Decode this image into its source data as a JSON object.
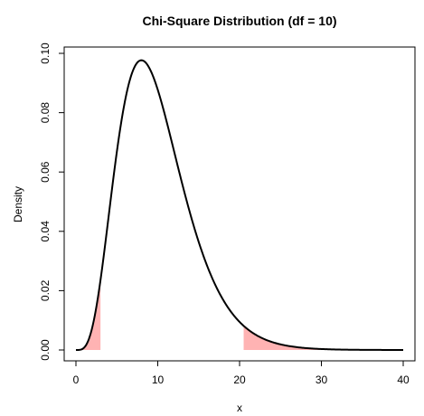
{
  "chart_data": {
    "type": "line",
    "title": "Chi-Square Distribution (df = 10)",
    "xlabel": "x",
    "ylabel": "Density",
    "df": 10,
    "xlim": [
      0,
      40
    ],
    "ylim": [
      0,
      0.1
    ],
    "x_ticks": [
      "0",
      "10",
      "20",
      "30",
      "40"
    ],
    "y_ticks": [
      "0.00",
      "0.02",
      "0.04",
      "0.06",
      "0.08",
      "0.10"
    ],
    "grid": false,
    "legend": "none",
    "curve": {
      "x": [
        0,
        0.5,
        1,
        1.5,
        2,
        2.5,
        3,
        3.5,
        4,
        4.5,
        5,
        5.5,
        6,
        6.5,
        7,
        7.5,
        8,
        8.5,
        9,
        9.5,
        10,
        11,
        12,
        13,
        14,
        15,
        16,
        17,
        18,
        19,
        20,
        21,
        22,
        23,
        24,
        25,
        26,
        27,
        28,
        30,
        32,
        35,
        40
      ],
      "y": [
        0,
        0.0,
        0.0008,
        0.0041,
        0.0153,
        0.0295,
        0.0264,
        0.0368,
        0.0541,
        0.0646,
        0.0668,
        0.084,
        0.0902,
        0.0936,
        0.0952,
        0.0966,
        0.0977,
        0.0956,
        0.0933,
        0.0908,
        0.0877,
        0.0806,
        0.0717,
        0.0625,
        0.0541,
        0.0463,
        0.0391,
        0.0328,
        0.0273,
        0.0226,
        0.0183,
        0.0147,
        0.0118,
        0.0093,
        0.0073,
        0.0058,
        0.0045,
        0.0035,
        0.0027,
        0.0016,
        0.0009,
        0.0004,
        0.0001
      ]
    },
    "line_color": "#000000",
    "shaded_regions": [
      {
        "from": 0,
        "to": 3.0,
        "color": "#ffb3b3"
      },
      {
        "from": 20.5,
        "to": 40,
        "color": "#ffb3b3"
      }
    ]
  }
}
